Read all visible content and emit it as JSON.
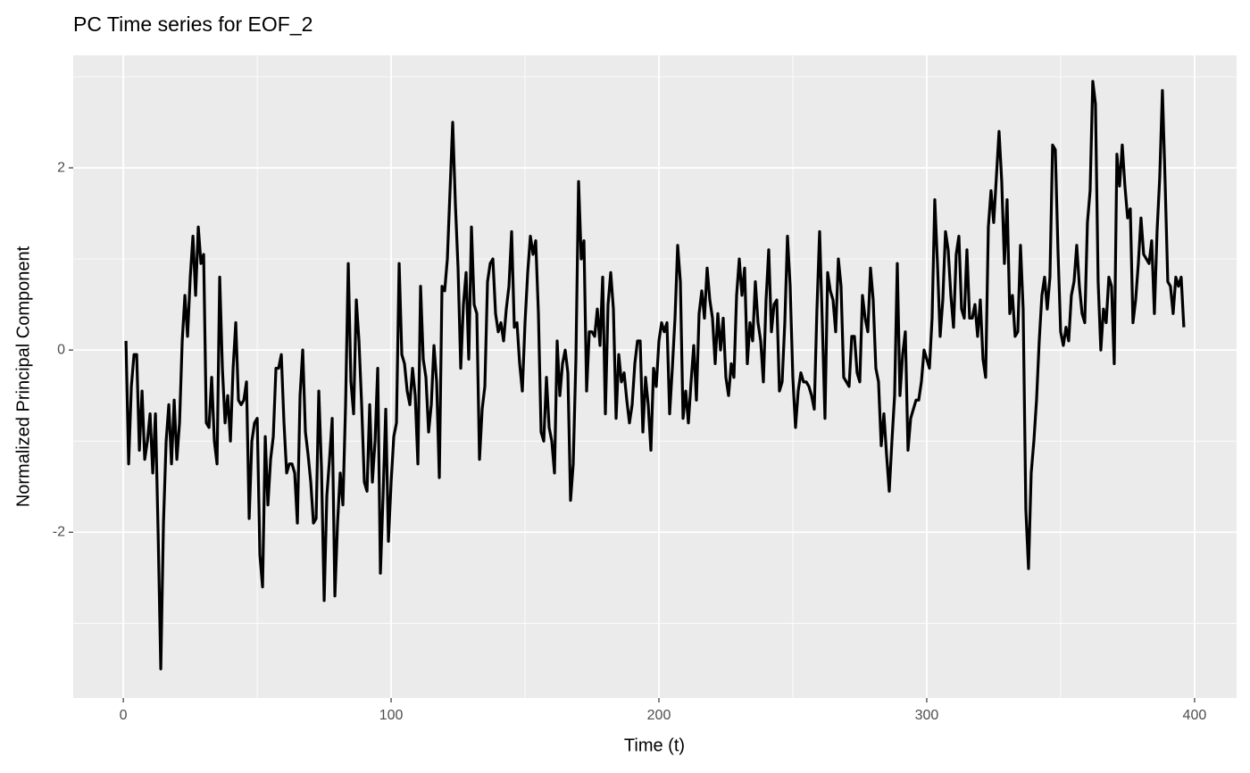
{
  "chart_data": {
    "type": "line",
    "title": "PC Time series for EOF_2",
    "x_label": "Time (t)",
    "y_label": "Normalized Principal Component",
    "xlim": [
      -18.7,
      415.7
    ],
    "ylim": [
      -3.82,
      3.235
    ],
    "xticks": [
      0,
      100,
      200,
      300,
      400
    ],
    "yticks": [
      -2,
      0,
      2
    ],
    "grid": true,
    "series": [
      {
        "color": "#000000",
        "x": [
          1,
          2,
          3,
          4,
          5,
          6,
          7,
          8,
          9,
          10,
          11,
          12,
          13,
          14,
          15,
          16,
          17,
          18,
          19,
          20,
          21,
          22,
          23,
          24,
          25,
          26,
          27,
          28,
          29,
          30,
          31,
          32,
          33,
          34,
          35,
          36,
          37,
          38,
          39,
          40,
          41,
          42,
          43,
          44,
          45,
          46,
          47,
          48,
          49,
          50,
          51,
          52,
          53,
          54,
          55,
          56,
          57,
          58,
          59,
          60,
          61,
          62,
          63,
          64,
          65,
          66,
          67,
          68,
          69,
          70,
          71,
          72,
          73,
          74,
          75,
          76,
          77,
          78,
          79,
          80,
          81,
          82,
          83,
          84,
          85,
          86,
          87,
          88,
          89,
          90,
          91,
          92,
          93,
          94,
          95,
          96,
          97,
          98,
          99,
          100,
          101,
          102,
          103,
          104,
          105,
          106,
          107,
          108,
          109,
          110,
          111,
          112,
          113,
          114,
          115,
          116,
          117,
          118,
          119,
          120,
          121,
          122,
          123,
          124,
          125,
          126,
          127,
          128,
          129,
          130,
          131,
          132,
          133,
          134,
          135,
          136,
          137,
          138,
          139,
          140,
          141,
          142,
          143,
          144,
          145,
          146,
          147,
          148,
          149,
          150,
          151,
          152,
          153,
          154,
          155,
          156,
          157,
          158,
          159,
          160,
          161,
          162,
          163,
          164,
          165,
          166,
          167,
          168,
          169,
          170,
          171,
          172,
          173,
          174,
          175,
          176,
          177,
          178,
          179,
          180,
          181,
          182,
          183,
          184,
          185,
          186,
          187,
          188,
          189,
          190,
          191,
          192,
          193,
          194,
          195,
          196,
          197,
          198,
          199,
          200,
          201,
          202,
          203,
          204,
          205,
          206,
          207,
          208,
          209,
          210,
          211,
          212,
          213,
          214,
          215,
          216,
          217,
          218,
          219,
          220,
          221,
          222,
          223,
          224,
          225,
          226,
          227,
          228,
          229,
          230,
          231,
          232,
          233,
          234,
          235,
          236,
          237,
          238,
          239,
          240,
          241,
          242,
          243,
          244,
          245,
          246,
          247,
          248,
          249,
          250,
          251,
          252,
          253,
          254,
          255,
          256,
          257,
          258,
          259,
          260,
          261,
          262,
          263,
          264,
          265,
          266,
          267,
          268,
          269,
          270,
          271,
          272,
          273,
          274,
          275,
          276,
          277,
          278,
          279,
          280,
          281,
          282,
          283,
          284,
          285,
          286,
          287,
          288,
          289,
          290,
          291,
          292,
          293,
          294,
          295,
          296,
          297,
          298,
          299,
          300,
          301,
          302,
          303,
          304,
          305,
          306,
          307,
          308,
          309,
          310,
          311,
          312,
          313,
          314,
          315,
          316,
          317,
          318,
          319,
          320,
          321,
          322,
          323,
          324,
          325,
          326,
          327,
          328,
          329,
          330,
          331,
          332,
          333,
          334,
          335,
          336,
          337,
          338,
          339,
          340,
          341,
          342,
          343,
          344,
          345,
          346,
          347,
          348,
          349,
          350,
          351,
          352,
          353,
          354,
          355,
          356,
          357,
          358,
          359,
          360,
          361,
          362,
          363,
          364,
          365,
          366,
          367,
          368,
          369,
          370,
          371,
          372,
          373,
          374,
          375,
          376,
          377,
          378,
          379,
          380,
          381,
          382,
          383,
          384,
          385,
          386,
          387,
          388,
          389,
          390,
          391,
          392,
          393,
          394,
          395,
          396
        ],
        "values": [
          0.1,
          -1.25,
          -0.4,
          -0.05,
          -0.05,
          -1.1,
          -0.45,
          -1.2,
          -1.0,
          -0.7,
          -1.35,
          -0.7,
          -2.0,
          -3.5,
          -1.9,
          -1.0,
          -0.6,
          -1.25,
          -0.55,
          -1.2,
          -0.8,
          0.1,
          0.6,
          0.15,
          0.8,
          1.25,
          0.6,
          1.35,
          0.95,
          1.05,
          -0.8,
          -0.85,
          -0.3,
          -1.0,
          -1.25,
          0.8,
          -0.2,
          -0.8,
          -0.5,
          -1.0,
          -0.2,
          0.3,
          -0.55,
          -0.6,
          -0.55,
          -0.35,
          -1.85,
          -1.0,
          -0.8,
          -0.75,
          -2.25,
          -2.6,
          -0.95,
          -1.7,
          -1.2,
          -0.95,
          -0.2,
          -0.2,
          -0.05,
          -0.8,
          -1.35,
          -1.25,
          -1.25,
          -1.35,
          -1.9,
          -0.5,
          0.0,
          -0.9,
          -1.15,
          -1.45,
          -1.9,
          -1.85,
          -0.45,
          -1.3,
          -2.75,
          -1.6,
          -1.2,
          -0.75,
          -2.7,
          -1.9,
          -1.35,
          -1.7,
          -0.6,
          0.95,
          -0.35,
          -0.7,
          0.55,
          0.1,
          -0.6,
          -1.45,
          -1.55,
          -0.6,
          -1.45,
          -1.0,
          -0.2,
          -2.45,
          -1.6,
          -0.65,
          -2.1,
          -1.45,
          -0.95,
          -0.8,
          0.95,
          -0.05,
          -0.15,
          -0.45,
          -0.6,
          -0.2,
          -0.5,
          -1.25,
          0.7,
          -0.1,
          -0.3,
          -0.9,
          -0.6,
          0.05,
          -0.35,
          -1.4,
          0.7,
          0.65,
          1.0,
          1.75,
          2.5,
          1.6,
          0.9,
          -0.2,
          0.5,
          0.85,
          -0.1,
          1.35,
          0.5,
          0.4,
          -1.2,
          -0.65,
          -0.4,
          0.75,
          0.95,
          1.0,
          0.4,
          0.2,
          0.3,
          0.1,
          0.45,
          0.7,
          1.3,
          0.25,
          0.3,
          -0.15,
          -0.45,
          0.3,
          0.85,
          1.25,
          1.05,
          1.2,
          0.4,
          -0.9,
          -1.0,
          -0.3,
          -0.85,
          -1.0,
          -1.35,
          0.1,
          -0.5,
          -0.15,
          0.0,
          -0.25,
          -1.65,
          -1.25,
          -0.1,
          1.85,
          1.0,
          1.2,
          -0.45,
          0.2,
          0.2,
          0.15,
          0.45,
          0.05,
          0.8,
          -0.7,
          0.5,
          0.85,
          0.45,
          -0.75,
          -0.05,
          -0.35,
          -0.25,
          -0.55,
          -0.8,
          -0.6,
          -0.15,
          0.1,
          0.1,
          -0.9,
          -0.3,
          -0.6,
          -1.1,
          -0.2,
          -0.4,
          0.1,
          0.3,
          0.2,
          0.3,
          -0.7,
          -0.2,
          0.35,
          1.15,
          0.75,
          -0.75,
          -0.45,
          -0.8,
          -0.35,
          0.05,
          -0.55,
          0.4,
          0.65,
          0.35,
          0.9,
          0.55,
          0.35,
          -0.15,
          0.4,
          0.0,
          0.35,
          -0.3,
          -0.5,
          -0.15,
          -0.3,
          0.6,
          1.0,
          0.6,
          0.9,
          -0.15,
          0.3,
          0.1,
          0.75,
          0.3,
          0.1,
          -0.35,
          0.55,
          1.1,
          0.2,
          0.5,
          0.55,
          -0.45,
          -0.35,
          0.3,
          1.25,
          0.7,
          -0.3,
          -0.85,
          -0.45,
          -0.25,
          -0.35,
          -0.35,
          -0.4,
          -0.5,
          -0.65,
          0.45,
          1.3,
          0.3,
          -0.75,
          0.85,
          0.65,
          0.55,
          0.2,
          1.0,
          0.7,
          -0.3,
          -0.35,
          -0.4,
          0.15,
          0.15,
          -0.25,
          -0.35,
          0.6,
          0.35,
          0.2,
          0.9,
          0.55,
          -0.2,
          -0.35,
          -1.05,
          -0.7,
          -1.15,
          -1.55,
          -1.0,
          -0.5,
          0.95,
          -0.5,
          -0.05,
          0.2,
          -1.1,
          -0.75,
          -0.65,
          -0.55,
          -0.55,
          -0.35,
          0.0,
          -0.1,
          -0.2,
          0.35,
          1.65,
          0.95,
          0.15,
          0.55,
          1.3,
          1.1,
          0.6,
          0.25,
          1.05,
          1.25,
          0.45,
          0.35,
          1.1,
          0.35,
          0.35,
          0.5,
          0.15,
          0.55,
          -0.1,
          -0.3,
          1.35,
          1.75,
          1.4,
          1.9,
          2.4,
          1.85,
          0.95,
          1.65,
          0.4,
          0.6,
          0.15,
          0.2,
          1.15,
          0.45,
          -1.75,
          -2.4,
          -1.35,
          -1.0,
          -0.55,
          0.1,
          0.6,
          0.8,
          0.45,
          0.8,
          2.25,
          2.2,
          1.1,
          0.2,
          0.05,
          0.25,
          0.1,
          0.6,
          0.75,
          1.15,
          0.7,
          0.4,
          0.3,
          1.4,
          1.75,
          2.95,
          2.7,
          0.75,
          0.0,
          0.45,
          0.3,
          0.8,
          0.7,
          -0.15,
          2.15,
          1.8,
          2.25,
          1.8,
          1.45,
          1.55,
          0.3,
          0.55,
          0.95,
          1.45,
          1.05,
          1.0,
          0.95,
          1.2,
          0.4,
          1.3,
          1.9,
          2.85,
          1.85,
          0.75,
          0.7,
          0.4,
          0.8,
          0.7,
          0.8,
          0.25
        ]
      }
    ]
  }
}
